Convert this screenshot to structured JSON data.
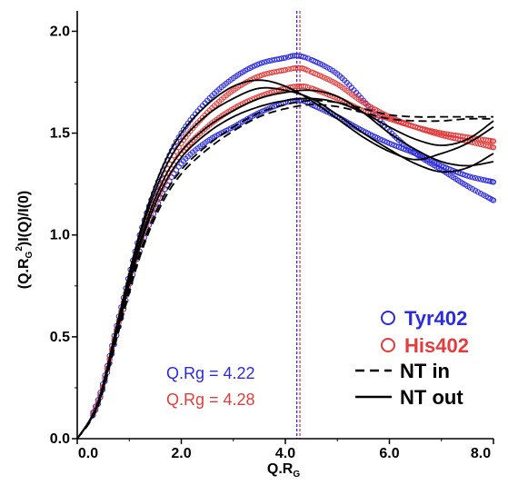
{
  "chart_data": {
    "type": "scatter",
    "title": "",
    "xlabel_main": "Q.R",
    "xlabel_sub": "G",
    "ylabel_prefix": "(Q.R",
    "ylabel_sub": "G",
    "ylabel_sup": "2",
    "ylabel_suffix": ")I(Q)/I(0)",
    "xlim": [
      0,
      8
    ],
    "ylim": [
      0,
      2.1
    ],
    "x_ticks": [
      {
        "value": 0,
        "label": "0.0"
      },
      {
        "value": 2,
        "label": "2.0"
      },
      {
        "value": 4,
        "label": "4.0"
      },
      {
        "value": 6,
        "label": "6.0"
      },
      {
        "value": 8,
        "label": "8.0"
      }
    ],
    "y_ticks": [
      {
        "value": 0,
        "label": "0.0"
      },
      {
        "value": 0.5,
        "label": "0.5"
      },
      {
        "value": 1,
        "label": "1.0"
      },
      {
        "value": 1.5,
        "label": "1.5"
      },
      {
        "value": 2,
        "label": "2.0"
      }
    ],
    "grid": false,
    "legend_placement": "bottom-right",
    "colors": {
      "tyr": "#2b2bdc",
      "his": "#e23c3c",
      "nt": "#000000"
    },
    "series": [
      {
        "name": "Tyr402",
        "style": "open-circle",
        "color": "#2b2bdc",
        "x": [
          0,
          0.4,
          0.8,
          1.2,
          1.6,
          2.0,
          2.5,
          3.0,
          3.5,
          4.0,
          4.22,
          4.5,
          5.0,
          5.5,
          6.0,
          6.5,
          7.0,
          7.5,
          8.0
        ],
        "y": [
          0,
          0.19,
          0.6,
          1.0,
          1.29,
          1.5,
          1.66,
          1.77,
          1.84,
          1.87,
          1.88,
          1.86,
          1.79,
          1.66,
          1.51,
          1.4,
          1.32,
          1.24,
          1.17
        ]
      },
      {
        "name": "Tyr402",
        "style": "open-circle",
        "color": "#2b2bdc",
        "x": [
          0,
          0.4,
          0.8,
          1.2,
          1.6,
          2.0,
          2.5,
          3.0,
          3.5,
          4.0,
          4.3,
          4.5,
          5.0,
          5.5,
          6.0,
          6.5,
          7.0,
          7.5,
          8.0
        ],
        "y": [
          0,
          0.17,
          0.55,
          0.92,
          1.18,
          1.35,
          1.46,
          1.53,
          1.6,
          1.65,
          1.66,
          1.64,
          1.58,
          1.51,
          1.45,
          1.4,
          1.34,
          1.29,
          1.26
        ]
      },
      {
        "name": "His402",
        "style": "open-circle",
        "color": "#e23c3c",
        "x": [
          0,
          0.4,
          0.8,
          1.2,
          1.6,
          2.0,
          2.5,
          3.0,
          3.5,
          4.0,
          4.28,
          4.5,
          5.0,
          5.5,
          6.0,
          6.5,
          7.0,
          7.5,
          8.0
        ],
        "y": [
          0,
          0.18,
          0.58,
          0.97,
          1.25,
          1.45,
          1.6,
          1.71,
          1.78,
          1.81,
          1.82,
          1.8,
          1.74,
          1.65,
          1.58,
          1.53,
          1.49,
          1.46,
          1.43
        ]
      },
      {
        "name": "His402",
        "style": "open-circle",
        "color": "#e23c3c",
        "x": [
          0,
          0.4,
          0.8,
          1.2,
          1.6,
          2.0,
          2.5,
          3.0,
          3.5,
          4.0,
          4.3,
          4.5,
          5.0,
          5.5,
          6.0,
          6.5,
          7.0,
          7.5,
          8.0
        ],
        "y": [
          0,
          0.18,
          0.57,
          0.95,
          1.21,
          1.4,
          1.53,
          1.62,
          1.68,
          1.72,
          1.73,
          1.72,
          1.67,
          1.61,
          1.57,
          1.53,
          1.5,
          1.48,
          1.46
        ]
      },
      {
        "name": "NT in",
        "style": "dashed",
        "color": "#000000",
        "x": [
          0,
          0.4,
          0.8,
          1.2,
          1.6,
          2.0,
          2.5,
          3.0,
          3.5,
          4.0,
          4.5,
          5.0,
          5.5,
          6.0,
          6.5,
          7.0,
          7.5,
          8.0
        ],
        "y": [
          0,
          0.16,
          0.54,
          0.91,
          1.16,
          1.32,
          1.44,
          1.53,
          1.6,
          1.64,
          1.66,
          1.65,
          1.62,
          1.59,
          1.58,
          1.58,
          1.58,
          1.58
        ]
      },
      {
        "name": "NT in",
        "style": "dashed",
        "color": "#000000",
        "x": [
          0,
          0.4,
          0.8,
          1.2,
          1.6,
          2.0,
          2.5,
          3.0,
          3.5,
          4.0,
          4.5,
          5.0,
          5.5,
          6.0,
          6.5,
          7.0,
          7.5,
          8.0
        ],
        "y": [
          0,
          0.16,
          0.53,
          0.89,
          1.14,
          1.3,
          1.42,
          1.51,
          1.58,
          1.62,
          1.64,
          1.63,
          1.6,
          1.57,
          1.56,
          1.56,
          1.57,
          1.57
        ]
      },
      {
        "name": "NT out",
        "style": "solid",
        "color": "#000000",
        "x": [
          0,
          0.4,
          0.8,
          1.2,
          1.6,
          2.0,
          2.5,
          3.0,
          3.5,
          4.0,
          4.5,
          5.0,
          5.5,
          6.0,
          6.5,
          7.0,
          7.5,
          8.0
        ],
        "y": [
          0,
          0.18,
          0.6,
          1.01,
          1.31,
          1.5,
          1.64,
          1.73,
          1.76,
          1.73,
          1.66,
          1.57,
          1.48,
          1.41,
          1.37,
          1.4,
          1.45,
          1.53
        ]
      },
      {
        "name": "NT out",
        "style": "solid",
        "color": "#000000",
        "x": [
          0,
          0.4,
          0.8,
          1.2,
          1.6,
          2.0,
          2.5,
          3.0,
          3.5,
          4.0,
          4.5,
          5.0,
          5.5,
          6.0,
          6.5,
          7.0,
          7.5,
          8.0
        ],
        "y": [
          0,
          0.18,
          0.59,
          0.99,
          1.28,
          1.46,
          1.59,
          1.67,
          1.72,
          1.71,
          1.67,
          1.59,
          1.5,
          1.42,
          1.35,
          1.31,
          1.33,
          1.4
        ]
      },
      {
        "name": "NT out",
        "style": "solid",
        "color": "#000000",
        "x": [
          0,
          0.4,
          0.8,
          1.2,
          1.6,
          2.0,
          2.5,
          3.0,
          3.5,
          4.0,
          4.5,
          5.0,
          5.5,
          6.0,
          6.5,
          7.0,
          7.5,
          8.0
        ],
        "y": [
          0,
          0.17,
          0.57,
          0.96,
          1.24,
          1.41,
          1.53,
          1.61,
          1.67,
          1.7,
          1.71,
          1.68,
          1.6,
          1.5,
          1.42,
          1.36,
          1.34,
          1.36
        ]
      },
      {
        "name": "NT out",
        "style": "solid",
        "color": "#000000",
        "x": [
          0,
          0.4,
          0.8,
          1.2,
          1.6,
          2.0,
          2.5,
          3.0,
          3.5,
          4.0,
          4.5,
          5.0,
          5.5,
          6.0,
          6.5,
          7.0,
          7.5,
          8.0
        ],
        "y": [
          0,
          0.17,
          0.56,
          0.94,
          1.21,
          1.38,
          1.5,
          1.58,
          1.63,
          1.66,
          1.67,
          1.65,
          1.6,
          1.53,
          1.47,
          1.44,
          1.47,
          1.56
        ]
      }
    ],
    "vlines": [
      {
        "x": 4.22,
        "color": "#2b2bdc"
      },
      {
        "x": 4.28,
        "color": "#e23c3c"
      }
    ],
    "annotations": [
      {
        "text": "Q.Rg = 4.22",
        "color": "#2b2bdc"
      },
      {
        "text": "Q.Rg = 4.28",
        "color": "#e23c3c"
      }
    ],
    "legend": [
      {
        "label": "Tyr402",
        "marker": "circle",
        "color": "#2b2bdc"
      },
      {
        "label": "His402",
        "marker": "circle",
        "color": "#e23c3c"
      },
      {
        "label": "NT in",
        "marker": "dashed",
        "color": "#000000"
      },
      {
        "label": "NT out",
        "marker": "solid",
        "color": "#000000"
      }
    ]
  }
}
